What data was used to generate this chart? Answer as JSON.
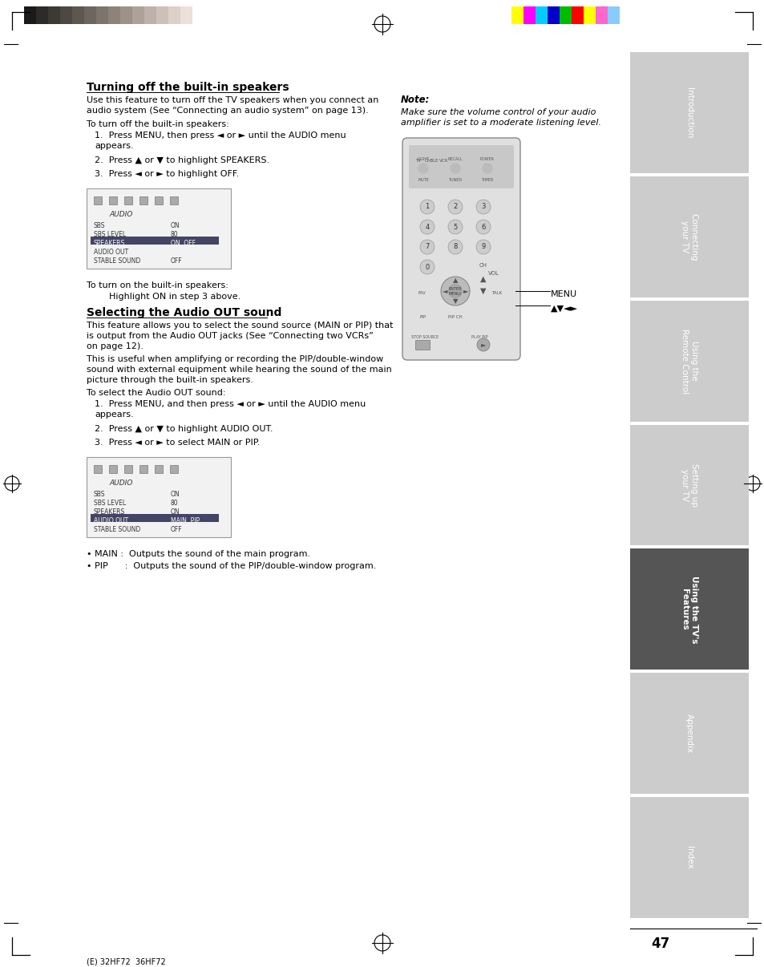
{
  "page_bg": "#ffffff",
  "sidebar_bg_light": "#cccccc",
  "sidebar_bg_dark": "#555555",
  "sidebar_labels": [
    "Introduction",
    "Connecting\nyour TV",
    "Using the\nRemote Control",
    "Setting up\nyour TV",
    "Using the TV's\nFeatures",
    "Appendix",
    "Index"
  ],
  "sidebar_active_index": 4,
  "page_number": "47",
  "footer_text": "(E) 32HF72  36HF72",
  "title1": "Turning off the built-in speakers",
  "body1": "Use this feature to turn off the TV speakers when you connect an\naudio system (See “Connecting an audio system” on page 13).",
  "body1b": "To turn off the built-in speakers:",
  "steps1": [
    "Press MENU, then press ◄ or ► until the AUDIO menu\nappears.",
    "Press ▲ or ▼ to highlight SPEAKERS.",
    "Press ◄ or ► to highlight OFF."
  ],
  "body1c": "To turn on the built-in speakers:",
  "body1d": "Highlight ON in step 3 above.",
  "title2": "Selecting the Audio OUT sound",
  "body2a": "This feature allows you to select the sound source (MAIN or PIP) that\nis output from the Audio OUT jacks (See “Connecting two VCRs”\non page 12).",
  "body2b": "This is useful when amplifying or recording the PIP/double-window\nsound with external equipment while hearing the sound of the main\npicture through the built-in speakers.",
  "body2c": "To select the Audio OUT sound:",
  "steps2": [
    "Press MENU, and then press ◄ or ► until the AUDIO menu\nappears.",
    "Press ▲ or ▼ to highlight AUDIO OUT.",
    "Press ◄ or ► to select MAIN or PIP."
  ],
  "bullets2": [
    "MAIN :  Outputs the sound of the main program.",
    "PIP      :  Outputs the sound of the PIP/double-window program."
  ],
  "note_title": "Note:",
  "note_body": "Make sure the volume control of your audio\namplifier is set to a moderate listening level.",
  "menu_label": "MENU",
  "arrow_label": "▲▼◄►",
  "color_bars_dark": [
    "#1a1a1a",
    "#2d2b29",
    "#3d3935",
    "#4d4843",
    "#5d5750",
    "#6d665e",
    "#7d756b",
    "#8d8479",
    "#9d9388",
    "#ada298",
    "#bdb1a8",
    "#cdc0b8",
    "#ddd0c9",
    "#ede0d9",
    "#ffffff"
  ],
  "color_bars_color": [
    "#ffff00",
    "#ff00ff",
    "#00ccff",
    "#0000cc",
    "#00bb00",
    "#ff0000",
    "#ffff00",
    "#ff66cc",
    "#88ccff"
  ]
}
